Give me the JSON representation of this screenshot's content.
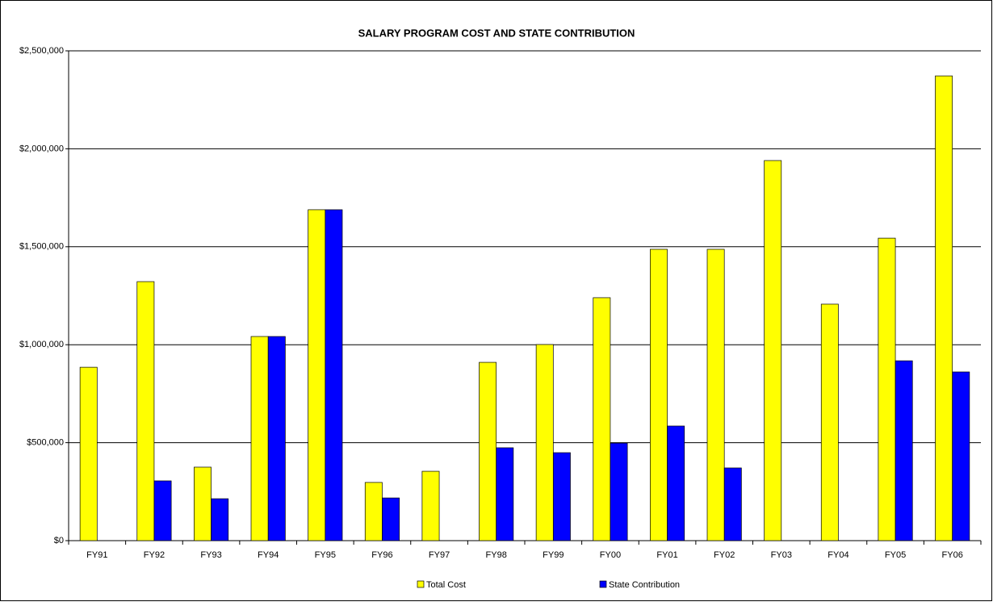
{
  "chart_data": {
    "type": "bar",
    "title": "SALARY PROGRAM COST AND STATE CONTRIBUTION",
    "categories": [
      "FY91",
      "FY92",
      "FY93",
      "FY94",
      "FY95",
      "FY96",
      "FY97",
      "FY98",
      "FY99",
      "FY00",
      "FY01",
      "FY02",
      "FY03",
      "FY04",
      "FY05",
      "FY06"
    ],
    "series": [
      {
        "name": "Total Cost",
        "color": "#ffff00",
        "values": [
          885000,
          1322000,
          375000,
          1042000,
          1689000,
          297000,
          354000,
          910000,
          1001000,
          1240000,
          1487000,
          1487000,
          1940000,
          1207000,
          1544000,
          2372000
        ]
      },
      {
        "name": "State Contribution",
        "color": "#0000ff",
        "values": [
          0,
          305000,
          214000,
          1042000,
          1689000,
          218000,
          0,
          474000,
          449000,
          498000,
          585000,
          371000,
          0,
          0,
          918000,
          861000
        ]
      }
    ],
    "ylim": [
      0,
      2500000
    ],
    "yticks": [
      {
        "value": 0,
        "label": "$0"
      },
      {
        "value": 500000,
        "label": "$500,000"
      },
      {
        "value": 1000000,
        "label": "$1,000,000"
      },
      {
        "value": 1500000,
        "label": "$1,500,000"
      },
      {
        "value": 2000000,
        "label": "$2,000,000"
      },
      {
        "value": 2500000,
        "label": "$2,500,000"
      }
    ],
    "grid": true,
    "legend": "bottom"
  }
}
